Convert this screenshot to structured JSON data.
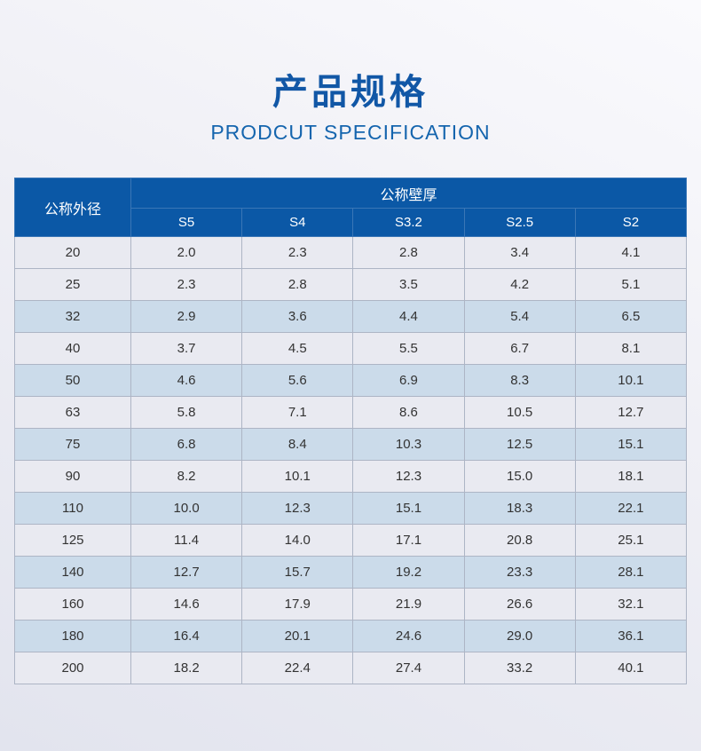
{
  "page": {
    "title": "产品规格",
    "subtitle": "PRODCUT SPECIFICATION"
  },
  "colors": {
    "header_bg": "#0b58a6",
    "header_border": "#3a76b6",
    "header_text": "#ffffff",
    "title_text": "#1157a6",
    "subtitle_text": "#1565ae",
    "row_light": "#e9eaf1",
    "row_stripe": "#cbdbea",
    "border": "#adb5c5",
    "cell_text": "#333333"
  },
  "table": {
    "header": {
      "col1": "公称外径",
      "group": "公称壁厚",
      "sub_columns": [
        "S5",
        "S4",
        "S3.2",
        "S2.5",
        "S2"
      ]
    },
    "rows": [
      {
        "diameter": "20",
        "values": [
          "2.0",
          "2.3",
          "2.8",
          "3.4",
          "4.1"
        ],
        "highlight": false
      },
      {
        "diameter": "25",
        "values": [
          "2.3",
          "2.8",
          "3.5",
          "4.2",
          "5.1"
        ],
        "highlight": false
      },
      {
        "diameter": "32",
        "values": [
          "2.9",
          "3.6",
          "4.4",
          "5.4",
          "6.5"
        ],
        "highlight": true
      },
      {
        "diameter": "40",
        "values": [
          "3.7",
          "4.5",
          "5.5",
          "6.7",
          "8.1"
        ],
        "highlight": false
      },
      {
        "diameter": "50",
        "values": [
          "4.6",
          "5.6",
          "6.9",
          "8.3",
          "10.1"
        ],
        "highlight": true
      },
      {
        "diameter": "63",
        "values": [
          "5.8",
          "7.1",
          "8.6",
          "10.5",
          "12.7"
        ],
        "highlight": false
      },
      {
        "diameter": "75",
        "values": [
          "6.8",
          "8.4",
          "10.3",
          "12.5",
          "15.1"
        ],
        "highlight": true
      },
      {
        "diameter": "90",
        "values": [
          "8.2",
          "10.1",
          "12.3",
          "15.0",
          "18.1"
        ],
        "highlight": false
      },
      {
        "diameter": "110",
        "values": [
          "10.0",
          "12.3",
          "15.1",
          "18.3",
          "22.1"
        ],
        "highlight": true
      },
      {
        "diameter": "125",
        "values": [
          "11.4",
          "14.0",
          "17.1",
          "20.8",
          "25.1"
        ],
        "highlight": false
      },
      {
        "diameter": "140",
        "values": [
          "12.7",
          "15.7",
          "19.2",
          "23.3",
          "28.1"
        ],
        "highlight": true
      },
      {
        "diameter": "160",
        "values": [
          "14.6",
          "17.9",
          "21.9",
          "26.6",
          "32.1"
        ],
        "highlight": false
      },
      {
        "diameter": "180",
        "values": [
          "16.4",
          "20.1",
          "24.6",
          "29.0",
          "36.1"
        ],
        "highlight": true
      },
      {
        "diameter": "200",
        "values": [
          "18.2",
          "22.4",
          "27.4",
          "33.2",
          "40.1"
        ],
        "highlight": false
      }
    ]
  }
}
